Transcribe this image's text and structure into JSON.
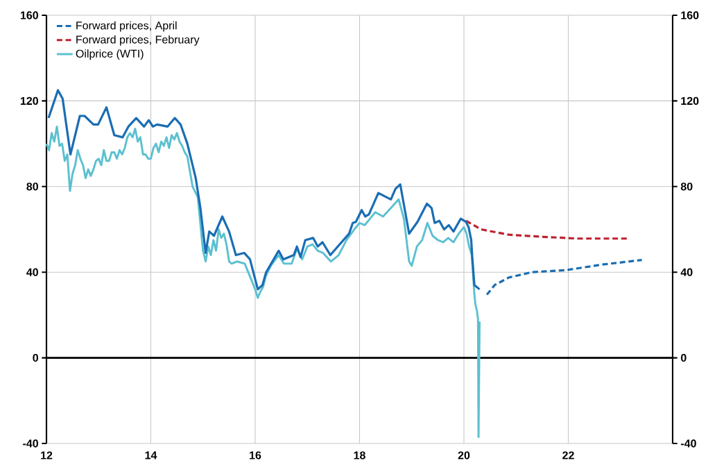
{
  "chart_data": {
    "type": "line",
    "xlim": [
      12,
      24
    ],
    "xticks": [
      12,
      14,
      16,
      18,
      20,
      22
    ],
    "ylim": [
      -40,
      160
    ],
    "yticks": [
      -40,
      0,
      40,
      80,
      120,
      160
    ],
    "y2lim": [
      -40,
      160
    ],
    "y2ticks": [
      -40,
      0,
      40,
      80,
      120,
      160
    ],
    "grid": true,
    "legend": "top left",
    "ref_lines": [
      {
        "axis": "y",
        "value": 0,
        "color": "#000000"
      }
    ],
    "series": [
      {
        "name": "Forward prices, April",
        "color": "#1a6db3",
        "line_style": "dashed",
        "x": [
          20.44,
          20.59,
          20.86,
          21.3,
          21.97,
          22.63,
          23.41
        ],
        "values": [
          29.5,
          34,
          37.5,
          40,
          41,
          43.5,
          45.7
        ]
      },
      {
        "name": "Forward prices, February",
        "color": "#c0202e",
        "line_style": "dashed",
        "x": [
          20.04,
          20.33,
          20.86,
          21.52,
          22.19,
          23.16
        ],
        "values": [
          64,
          60,
          57.5,
          56.5,
          55.7,
          55.7
        ]
      },
      {
        "name": "Oilprice (WTI)",
        "color": "#5bc0d0",
        "line_style": "solid",
        "x": [
          12.0,
          12.05,
          12.1,
          12.15,
          12.2,
          12.25,
          12.3,
          12.35,
          12.4,
          12.45,
          12.5,
          12.55,
          12.6,
          12.65,
          12.7,
          12.75,
          12.8,
          12.85,
          12.9,
          12.95,
          13.0,
          13.05,
          13.1,
          13.15,
          13.2,
          13.25,
          13.3,
          13.35,
          13.4,
          13.45,
          13.5,
          13.55,
          13.6,
          13.65,
          13.7,
          13.75,
          13.8,
          13.85,
          13.9,
          13.95,
          14.0,
          14.05,
          14.1,
          14.15,
          14.2,
          14.25,
          14.3,
          14.35,
          14.4,
          14.45,
          14.5,
          14.55,
          14.6,
          14.65,
          14.7,
          14.8,
          14.9,
          15.0,
          15.05,
          15.1,
          15.15,
          15.2,
          15.25,
          15.3,
          15.35,
          15.4,
          15.45,
          15.5,
          15.55,
          15.65,
          15.8,
          15.9,
          16.0,
          16.05,
          16.1,
          16.15,
          16.2,
          16.3,
          16.45,
          16.55,
          16.7,
          16.8,
          16.9,
          17.0,
          17.1,
          17.2,
          17.3,
          17.45,
          17.6,
          17.75,
          17.9,
          18.0,
          18.1,
          18.2,
          18.3,
          18.45,
          18.6,
          18.75,
          18.85,
          18.95,
          19.0,
          19.1,
          19.2,
          19.3,
          19.4,
          19.5,
          19.6,
          19.7,
          19.8,
          19.9,
          20.0,
          20.05,
          20.1,
          20.15,
          20.2,
          20.22,
          20.25,
          20.27,
          20.28,
          20.3
        ],
        "values": [
          100,
          97,
          105,
          101,
          108,
          99,
          100,
          92,
          95,
          78,
          86,
          90,
          97,
          93,
          90,
          84,
          88,
          85,
          88,
          92,
          93,
          90,
          97,
          92,
          92,
          96,
          96,
          93,
          97,
          95,
          98,
          103,
          105,
          103,
          107,
          101,
          103,
          95,
          95,
          93,
          93,
          98,
          100,
          96,
          101,
          99,
          103,
          98,
          104,
          102,
          105,
          101,
          99,
          96,
          94,
          80,
          75,
          50,
          45,
          52,
          48,
          55,
          50,
          60,
          56,
          58,
          53,
          45,
          44,
          45,
          44,
          38,
          32,
          28,
          31,
          33,
          38,
          43,
          48,
          44,
          44,
          51,
          46,
          52,
          53,
          50,
          49,
          45,
          48,
          55,
          60,
          63,
          62,
          65,
          68,
          66,
          70,
          74,
          65,
          45,
          43,
          52,
          55,
          63,
          57,
          55,
          54,
          56,
          54,
          58,
          61,
          58,
          52,
          48,
          30,
          25,
          22,
          18,
          -37,
          17
        ]
      },
      {
        "color": "#1a6db3",
        "line_style": "solid",
        "x": [
          12.04,
          12.22,
          12.31,
          12.46,
          12.64,
          12.73,
          12.9,
          12.99,
          13.15,
          13.3,
          13.46,
          13.57,
          13.72,
          13.87,
          13.96,
          14.04,
          14.12,
          14.32,
          14.46,
          14.57,
          14.7,
          14.86,
          14.95,
          15.05,
          15.12,
          15.21,
          15.37,
          15.5,
          15.63,
          15.79,
          15.9,
          16.05,
          16.14,
          16.21,
          16.45,
          16.54,
          16.74,
          16.8,
          16.87,
          16.96,
          17.11,
          17.2,
          17.29,
          17.44,
          17.8,
          17.87,
          17.93,
          18.04,
          18.11,
          18.18,
          18.36,
          18.6,
          18.69,
          18.78,
          18.95,
          19.11,
          19.29,
          19.38,
          19.44,
          19.53,
          19.62,
          19.71,
          19.8,
          19.94,
          20.04,
          20.09,
          20.14,
          20.16,
          20.2,
          20.3
        ],
        "values": [
          112,
          125,
          121,
          95,
          113,
          113,
          109,
          109,
          117,
          104,
          103,
          108,
          112,
          108,
          111,
          108,
          109,
          108,
          112,
          109,
          100,
          84,
          70,
          49,
          59,
          57,
          66,
          59,
          48,
          49,
          46,
          32,
          34,
          40,
          50,
          46,
          48,
          52,
          47,
          55,
          56,
          52,
          54,
          48,
          58,
          63,
          63.5,
          69,
          66,
          67,
          77,
          74,
          79,
          81,
          58,
          63.5,
          72,
          70,
          63,
          64,
          60,
          62,
          59,
          65,
          63.5,
          61,
          55,
          47,
          34,
          32
        ]
      }
    ]
  }
}
